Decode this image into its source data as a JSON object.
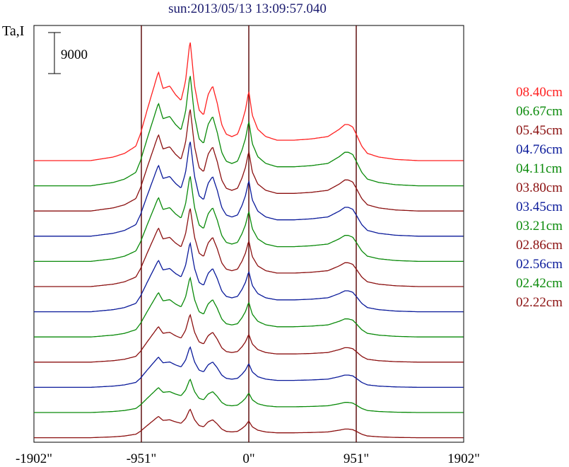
{
  "chart_data": {
    "type": "line",
    "title": "sun:2013/05/13 13:09:57.040",
    "ylabel": "Ta,I",
    "scale_bar_label": "9000",
    "scale_bar_value": 9000,
    "x_ticks": [
      {
        "value": -1902,
        "label": "-1902\""
      },
      {
        "value": -951,
        "label": "-951\""
      },
      {
        "value": 0,
        "label": "0\""
      },
      {
        "value": 951,
        "label": "951\""
      },
      {
        "value": 1902,
        "label": "1902\""
      }
    ],
    "xlim": [
      -1902,
      1902
    ],
    "limb_markers": [
      -951,
      0,
      951
    ],
    "grid": false,
    "legend_position": "right",
    "colors": {
      "title": "#1a1a6e",
      "frame": "#000000",
      "marker_line": "#550000"
    },
    "series": [
      {
        "name": "08.40cm",
        "color": "#ff2020",
        "baseline": 0,
        "amplitude": 1.0
      },
      {
        "name": "06.67cm",
        "color": "#0a8a0a",
        "baseline": 1,
        "amplitude": 0.93
      },
      {
        "name": "05.45cm",
        "color": "#8b1010",
        "baseline": 2,
        "amplitude": 0.86
      },
      {
        "name": "04.76cm",
        "color": "#0a1a9a",
        "baseline": 3,
        "amplitude": 0.8
      },
      {
        "name": "04.11cm",
        "color": "#0a8a0a",
        "baseline": 4,
        "amplitude": 0.72
      },
      {
        "name": "03.80cm",
        "color": "#8b1010",
        "baseline": 5,
        "amplitude": 0.66
      },
      {
        "name": "03.45cm",
        "color": "#0a1a9a",
        "baseline": 6,
        "amplitude": 0.58
      },
      {
        "name": "03.21cm",
        "color": "#0a8a0a",
        "baseline": 7,
        "amplitude": 0.5
      },
      {
        "name": "02.86cm",
        "color": "#8b1010",
        "baseline": 8,
        "amplitude": 0.4
      },
      {
        "name": "02.56cm",
        "color": "#0a1a9a",
        "baseline": 9,
        "amplitude": 0.34
      },
      {
        "name": "02.42cm",
        "color": "#0a8a0a",
        "baseline": 10,
        "amplitude": 0.28
      },
      {
        "name": "02.22cm",
        "color": "#8b1010",
        "baseline": 11,
        "amplitude": 0.24
      }
    ],
    "profile_shape": {
      "x": [
        -1902,
        -1400,
        -1200,
        -1100,
        -1000,
        -960,
        -900,
        -850,
        -800,
        -760,
        -700,
        -650,
        -600,
        -560,
        -520,
        -480,
        -440,
        -400,
        -360,
        -320,
        -280,
        -240,
        -200,
        -150,
        -100,
        -60,
        -30,
        0,
        30,
        80,
        150,
        250,
        400,
        550,
        700,
        800,
        850,
        880,
        920,
        951,
        1000,
        1050,
        1150,
        1300,
        1500,
        1902
      ],
      "y": [
        0.0,
        0.0,
        0.03,
        0.06,
        0.12,
        0.22,
        0.42,
        0.58,
        0.74,
        0.6,
        0.62,
        0.55,
        0.5,
        0.66,
        1.0,
        0.62,
        0.42,
        0.38,
        0.55,
        0.62,
        0.48,
        0.3,
        0.22,
        0.2,
        0.22,
        0.32,
        0.42,
        0.58,
        0.38,
        0.26,
        0.2,
        0.17,
        0.17,
        0.18,
        0.2,
        0.26,
        0.3,
        0.3,
        0.28,
        0.22,
        0.12,
        0.06,
        0.03,
        0.01,
        0.0,
        0.0
      ]
    }
  }
}
